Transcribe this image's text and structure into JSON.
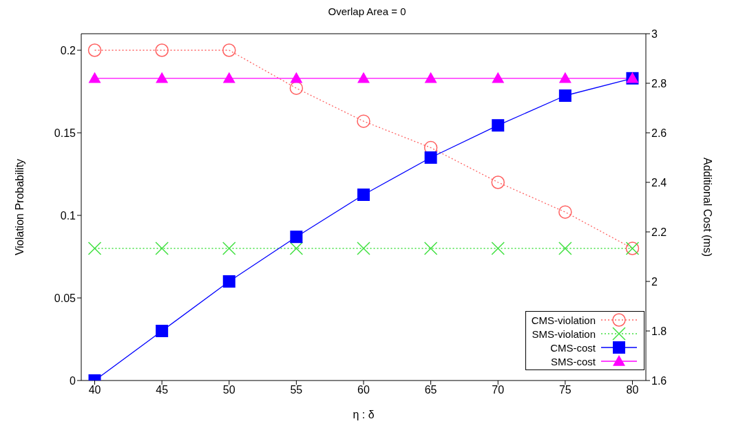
{
  "chart_data": {
    "type": "line",
    "title": "Overlap Area = 0",
    "xlabel": "η : δ",
    "ylabel": "Violation Probability",
    "y2label": "Additional Cost (ms)",
    "x": [
      40,
      45,
      50,
      55,
      60,
      65,
      70,
      75,
      80
    ],
    "xlim": [
      39,
      81
    ],
    "xticks": [
      40,
      45,
      50,
      55,
      60,
      65,
      70,
      75,
      80
    ],
    "ylim": [
      0,
      0.21
    ],
    "yticks": [
      0,
      0.05,
      0.1,
      0.15,
      0.2
    ],
    "y2lim": [
      1.6,
      3
    ],
    "y2ticks": [
      1.6,
      1.8,
      2,
      2.2,
      2.4,
      2.6,
      2.8,
      3
    ],
    "grid": false,
    "legend": "bottom right",
    "series": [
      {
        "name": "CMS-violation",
        "color": "#ff6060",
        "marker": "circle",
        "line_style": "dotted",
        "values": [
          0.2,
          0.2,
          0.2,
          0.177,
          0.157,
          0.141,
          0.12,
          0.102,
          0.08
        ]
      },
      {
        "name": "SMS-violation",
        "color": "#40e040",
        "marker": "cross",
        "line_style": "dotted",
        "values": [
          0.08,
          0.08,
          0.08,
          0.08,
          0.08,
          0.08,
          0.08,
          0.08,
          0.08
        ]
      },
      {
        "name": "CMS-cost",
        "color": "#0000ff",
        "marker": "square",
        "line_style": "solid",
        "axis": "y2",
        "values": [
          1.6,
          1.8,
          2.0,
          2.18,
          2.35,
          2.5,
          2.63,
          2.75,
          2.82
        ]
      },
      {
        "name": "SMS-cost",
        "color": "#ff00ff",
        "marker": "triangle",
        "line_style": "solid",
        "axis": "y2",
        "values": [
          2.82,
          2.82,
          2.82,
          2.82,
          2.82,
          2.82,
          2.82,
          2.82,
          2.82
        ]
      }
    ]
  }
}
